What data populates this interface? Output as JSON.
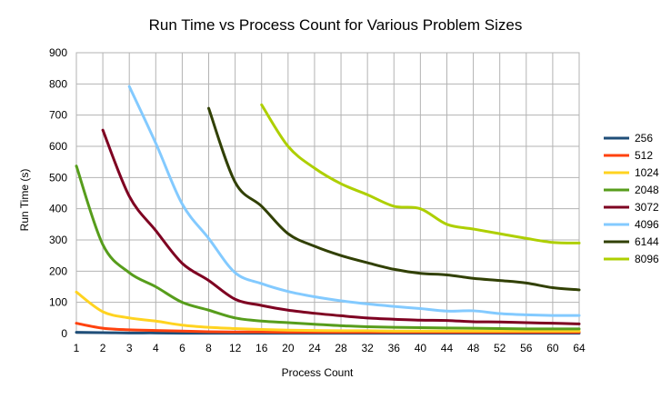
{
  "chart_data": {
    "type": "line",
    "title": "Run Time vs Process Count for Various Problem Sizes",
    "xlabel": "Process Count",
    "ylabel": "Run Time (s)",
    "categories": [
      "1",
      "2",
      "3",
      "4",
      "6",
      "8",
      "12",
      "16",
      "20",
      "24",
      "28",
      "32",
      "36",
      "40",
      "44",
      "48",
      "52",
      "56",
      "60",
      "64"
    ],
    "ylim": [
      0,
      900
    ],
    "yticks": [
      "0",
      "100",
      "200",
      "300",
      "400",
      "500",
      "600",
      "700",
      "800",
      "900"
    ],
    "grid": true,
    "legend_position": "right",
    "series": [
      {
        "name": "256",
        "color": "#1f4e79",
        "values": [
          4,
          3,
          2,
          2,
          1,
          1,
          1,
          1,
          1,
          1,
          1,
          1,
          1,
          1,
          1,
          1,
          1,
          1,
          1,
          1
        ]
      },
      {
        "name": "512",
        "color": "#ff420e",
        "values": [
          33,
          17,
          12,
          10,
          8,
          6,
          5,
          5,
          4,
          4,
          4,
          4,
          4,
          4,
          4,
          4,
          4,
          4,
          4,
          4
        ]
      },
      {
        "name": "1024",
        "color": "#ffd320",
        "values": [
          133,
          70,
          50,
          40,
          27,
          20,
          16,
          13,
          11,
          10,
          9,
          9,
          8,
          8,
          8,
          8,
          8,
          8,
          8,
          8
        ]
      },
      {
        "name": "2048",
        "color": "#579d1c",
        "values": [
          537,
          285,
          195,
          150,
          100,
          75,
          50,
          40,
          35,
          30,
          25,
          22,
          20,
          19,
          18,
          17,
          16,
          15,
          15,
          15
        ]
      },
      {
        "name": "3072",
        "color": "#7e0021",
        "values": [
          null,
          652,
          440,
          330,
          225,
          170,
          110,
          90,
          75,
          65,
          57,
          50,
          46,
          43,
          42,
          38,
          37,
          35,
          33,
          31
        ]
      },
      {
        "name": "4096",
        "color": "#83caff",
        "values": [
          null,
          null,
          792,
          610,
          415,
          305,
          195,
          160,
          135,
          118,
          105,
          95,
          87,
          80,
          72,
          73,
          64,
          60,
          58,
          58
        ]
      },
      {
        "name": "6144",
        "color": "#314004",
        "values": [
          null,
          null,
          null,
          null,
          null,
          722,
          485,
          408,
          320,
          280,
          250,
          227,
          206,
          193,
          188,
          177,
          170,
          162,
          147,
          140
        ]
      },
      {
        "name": "8096",
        "color": "#aecf00",
        "values": [
          null,
          null,
          null,
          null,
          null,
          null,
          null,
          733,
          600,
          530,
          480,
          445,
          408,
          400,
          350,
          335,
          320,
          305,
          292,
          290
        ]
      }
    ]
  }
}
